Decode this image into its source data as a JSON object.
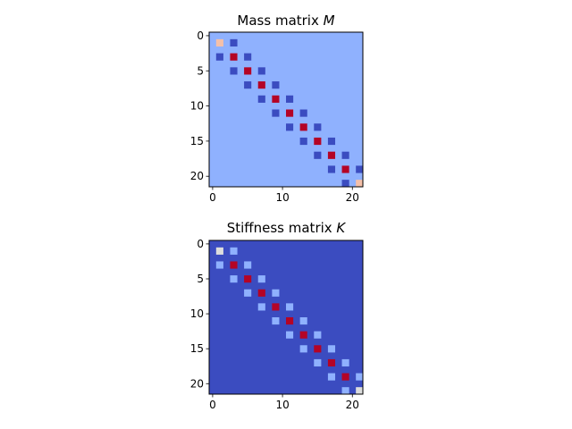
{
  "chart_data": [
    {
      "type": "heatmap",
      "title": "Mass matrix ",
      "title_var": "M",
      "size": 22,
      "xticks": [
        0,
        10,
        20
      ],
      "yticks": [
        0,
        5,
        10,
        15,
        20
      ],
      "colormap": "coolwarm",
      "background_color": "#8fb1fe",
      "cells": [
        {
          "row": 1,
          "col": 1,
          "color": "#f4c0a9"
        },
        {
          "row": 1,
          "col": 3,
          "color": "#3b4cc0"
        },
        {
          "row": 3,
          "col": 1,
          "color": "#3b4cc0"
        },
        {
          "row": 3,
          "col": 3,
          "color": "#b40426"
        },
        {
          "row": 3,
          "col": 5,
          "color": "#3b4cc0"
        },
        {
          "row": 5,
          "col": 3,
          "color": "#3b4cc0"
        },
        {
          "row": 5,
          "col": 5,
          "color": "#b40426"
        },
        {
          "row": 5,
          "col": 7,
          "color": "#3b4cc0"
        },
        {
          "row": 7,
          "col": 5,
          "color": "#3b4cc0"
        },
        {
          "row": 7,
          "col": 7,
          "color": "#b40426"
        },
        {
          "row": 7,
          "col": 9,
          "color": "#3b4cc0"
        },
        {
          "row": 9,
          "col": 7,
          "color": "#3b4cc0"
        },
        {
          "row": 9,
          "col": 9,
          "color": "#b40426"
        },
        {
          "row": 9,
          "col": 11,
          "color": "#3b4cc0"
        },
        {
          "row": 11,
          "col": 9,
          "color": "#3b4cc0"
        },
        {
          "row": 11,
          "col": 11,
          "color": "#b40426"
        },
        {
          "row": 11,
          "col": 13,
          "color": "#3b4cc0"
        },
        {
          "row": 13,
          "col": 11,
          "color": "#3b4cc0"
        },
        {
          "row": 13,
          "col": 13,
          "color": "#b40426"
        },
        {
          "row": 13,
          "col": 15,
          "color": "#3b4cc0"
        },
        {
          "row": 15,
          "col": 13,
          "color": "#3b4cc0"
        },
        {
          "row": 15,
          "col": 15,
          "color": "#b40426"
        },
        {
          "row": 15,
          "col": 17,
          "color": "#3b4cc0"
        },
        {
          "row": 17,
          "col": 15,
          "color": "#3b4cc0"
        },
        {
          "row": 17,
          "col": 17,
          "color": "#b40426"
        },
        {
          "row": 17,
          "col": 19,
          "color": "#3b4cc0"
        },
        {
          "row": 19,
          "col": 17,
          "color": "#3b4cc0"
        },
        {
          "row": 19,
          "col": 19,
          "color": "#b40426"
        },
        {
          "row": 19,
          "col": 21,
          "color": "#3b4cc0"
        },
        {
          "row": 21,
          "col": 19,
          "color": "#3b4cc0"
        },
        {
          "row": 21,
          "col": 21,
          "color": "#f4c0a9"
        }
      ]
    },
    {
      "type": "heatmap",
      "title": "Stiffness matrix ",
      "title_var": "K",
      "size": 22,
      "xticks": [
        0,
        10,
        20
      ],
      "yticks": [
        0,
        5,
        10,
        15,
        20
      ],
      "colormap": "coolwarm",
      "background_color": "#3b4cc0",
      "cells": [
        {
          "row": 1,
          "col": 1,
          "color": "#dcdddd"
        },
        {
          "row": 1,
          "col": 3,
          "color": "#8fb1fe"
        },
        {
          "row": 3,
          "col": 1,
          "color": "#8fb1fe"
        },
        {
          "row": 3,
          "col": 3,
          "color": "#b40426"
        },
        {
          "row": 3,
          "col": 5,
          "color": "#8fb1fe"
        },
        {
          "row": 5,
          "col": 3,
          "color": "#8fb1fe"
        },
        {
          "row": 5,
          "col": 5,
          "color": "#b40426"
        },
        {
          "row": 5,
          "col": 7,
          "color": "#8fb1fe"
        },
        {
          "row": 7,
          "col": 5,
          "color": "#8fb1fe"
        },
        {
          "row": 7,
          "col": 7,
          "color": "#b40426"
        },
        {
          "row": 7,
          "col": 9,
          "color": "#8fb1fe"
        },
        {
          "row": 9,
          "col": 7,
          "color": "#8fb1fe"
        },
        {
          "row": 9,
          "col": 9,
          "color": "#b40426"
        },
        {
          "row": 9,
          "col": 11,
          "color": "#8fb1fe"
        },
        {
          "row": 11,
          "col": 9,
          "color": "#8fb1fe"
        },
        {
          "row": 11,
          "col": 11,
          "color": "#b40426"
        },
        {
          "row": 11,
          "col": 13,
          "color": "#8fb1fe"
        },
        {
          "row": 13,
          "col": 11,
          "color": "#8fb1fe"
        },
        {
          "row": 13,
          "col": 13,
          "color": "#b40426"
        },
        {
          "row": 13,
          "col": 15,
          "color": "#8fb1fe"
        },
        {
          "row": 15,
          "col": 13,
          "color": "#8fb1fe"
        },
        {
          "row": 15,
          "col": 15,
          "color": "#b40426"
        },
        {
          "row": 15,
          "col": 17,
          "color": "#8fb1fe"
        },
        {
          "row": 17,
          "col": 15,
          "color": "#8fb1fe"
        },
        {
          "row": 17,
          "col": 17,
          "color": "#b40426"
        },
        {
          "row": 17,
          "col": 19,
          "color": "#8fb1fe"
        },
        {
          "row": 19,
          "col": 17,
          "color": "#8fb1fe"
        },
        {
          "row": 19,
          "col": 19,
          "color": "#b40426"
        },
        {
          "row": 19,
          "col": 21,
          "color": "#8fb1fe"
        },
        {
          "row": 21,
          "col": 19,
          "color": "#8fb1fe"
        },
        {
          "row": 21,
          "col": 21,
          "color": "#dcdddd"
        }
      ]
    }
  ]
}
